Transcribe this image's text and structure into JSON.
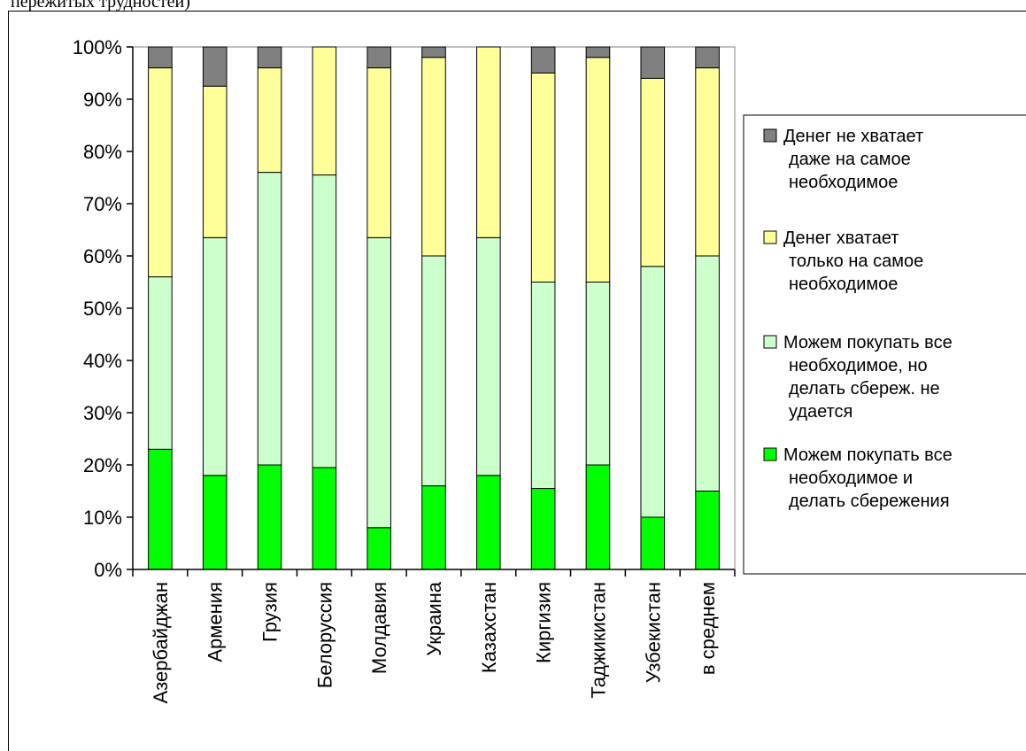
{
  "caption": "пережитых трудностей)",
  "colors": {
    "savings": "#00ff00",
    "basics_no_savings": "#ccffcc",
    "only_basics": "#ffff99",
    "not_enough": "#808080"
  },
  "chart_data": {
    "type": "bar",
    "stacked": true,
    "title": "",
    "xlabel": "",
    "ylabel": "",
    "ylim": [
      0,
      100
    ],
    "ytick_labels": [
      "0%",
      "10%",
      "20%",
      "30%",
      "40%",
      "50%",
      "60%",
      "70%",
      "80%",
      "90%",
      "100%"
    ],
    "grid": false,
    "legend_position": "right",
    "categories": [
      "Азербайджан",
      "Армения",
      "Грузия",
      "Белоруссия",
      "Молдавия",
      "Украина",
      "Казахстан",
      "Киргизия",
      "Таджикистан",
      "Узбекистан",
      "в среднем"
    ],
    "series": [
      {
        "name": "Можем покупать все необходимое и делать сбережения",
        "color_key": "savings",
        "values": [
          23,
          18,
          20,
          19.5,
          8,
          16,
          18,
          15.5,
          20,
          10,
          15
        ]
      },
      {
        "name": "Можем покупать все необходимое, но делать сбереж. не удается",
        "color_key": "basics_no_savings",
        "values": [
          33,
          45.5,
          56,
          56,
          55.5,
          44,
          45.5,
          39.5,
          35,
          48,
          45
        ]
      },
      {
        "name": "Денег хватает только на самое необходимое",
        "color_key": "only_basics",
        "values": [
          40,
          29,
          20,
          24.5,
          32.5,
          38,
          36.5,
          40,
          43,
          36,
          36
        ]
      },
      {
        "name": "Денег не хватает даже на самое необходимое",
        "color_key": "not_enough",
        "values": [
          4,
          7.5,
          4,
          0,
          4,
          2,
          0,
          5,
          2,
          6,
          4
        ]
      }
    ],
    "legend": [
      {
        "color_key": "not_enough",
        "lines": [
          "Денег не хватает",
          "даже на самое",
          "необходимое"
        ]
      },
      {
        "color_key": "only_basics",
        "lines": [
          "Денег хватает",
          "только на самое",
          "необходимое"
        ]
      },
      {
        "color_key": "basics_no_savings",
        "lines": [
          "Можем покупать все",
          "необходимое, но",
          "делать сбереж. не",
          "удается"
        ]
      },
      {
        "color_key": "savings",
        "lines": [
          "Можем покупать все",
          "необходимое и",
          "делать сбережения"
        ]
      }
    ]
  }
}
